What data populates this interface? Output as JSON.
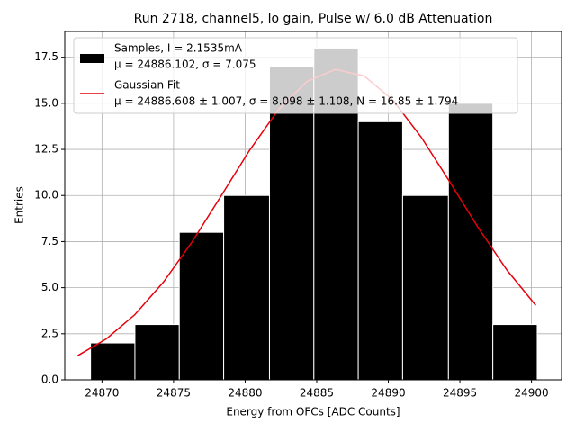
{
  "chart_data": {
    "type": "histogram",
    "title": "Run 2718, channel5, lo gain, Pulse w/ 6.0 dB Attenuation",
    "xlabel": "Energy from OFCs [ADC Counts]",
    "ylabel": "Entries",
    "bins": [
      24869.2,
      24872.3,
      24875.4,
      24878.5,
      24881.7,
      24884.8,
      24887.9,
      24891.0,
      24894.2,
      24897.3,
      24900.4
    ],
    "values": [
      2,
      3,
      8,
      10,
      17,
      18,
      14,
      10,
      15,
      3
    ],
    "color": "#000000",
    "series_name": "Samples, I = 2.1535mA",
    "series_detail": "μ = 24886.102, σ = 7.075",
    "fit": {
      "type": "line",
      "name": "Gaussian Fit",
      "detail": "μ = 24886.608 ± 1.007, σ = 8.098 ± 1.108, N = 16.85 ± 1.794",
      "color": "#e8000b",
      "x": [
        24868.3,
        24870.3,
        24872.3,
        24874.3,
        24876.3,
        24878.3,
        24880.3,
        24882.3,
        24884.3,
        24886.3,
        24888.3,
        24890.3,
        24892.3,
        24894.3,
        24896.3,
        24898.3,
        24900.3
      ],
      "values": [
        1.31,
        2.22,
        3.54,
        5.31,
        7.49,
        9.95,
        12.44,
        14.63,
        16.18,
        16.84,
        16.49,
        15.19,
        13.16,
        10.73,
        8.23,
        5.94,
        4.04
      ]
    },
    "xlim": [
      24867.4,
      24902.1
    ],
    "ylim": [
      0,
      18.9
    ],
    "xticks": [
      24870,
      24875,
      24880,
      24885,
      24890,
      24895,
      24900
    ],
    "yticks": [
      {
        "value": 0,
        "label": "0.0"
      },
      2.5,
      {
        "value": 5,
        "label": "5.0"
      },
      7.5,
      {
        "value": 10,
        "label": "10.0"
      },
      12.5,
      {
        "value": 15,
        "label": "15.0"
      },
      17.5
    ],
    "grid": true,
    "legend": "upper left"
  }
}
